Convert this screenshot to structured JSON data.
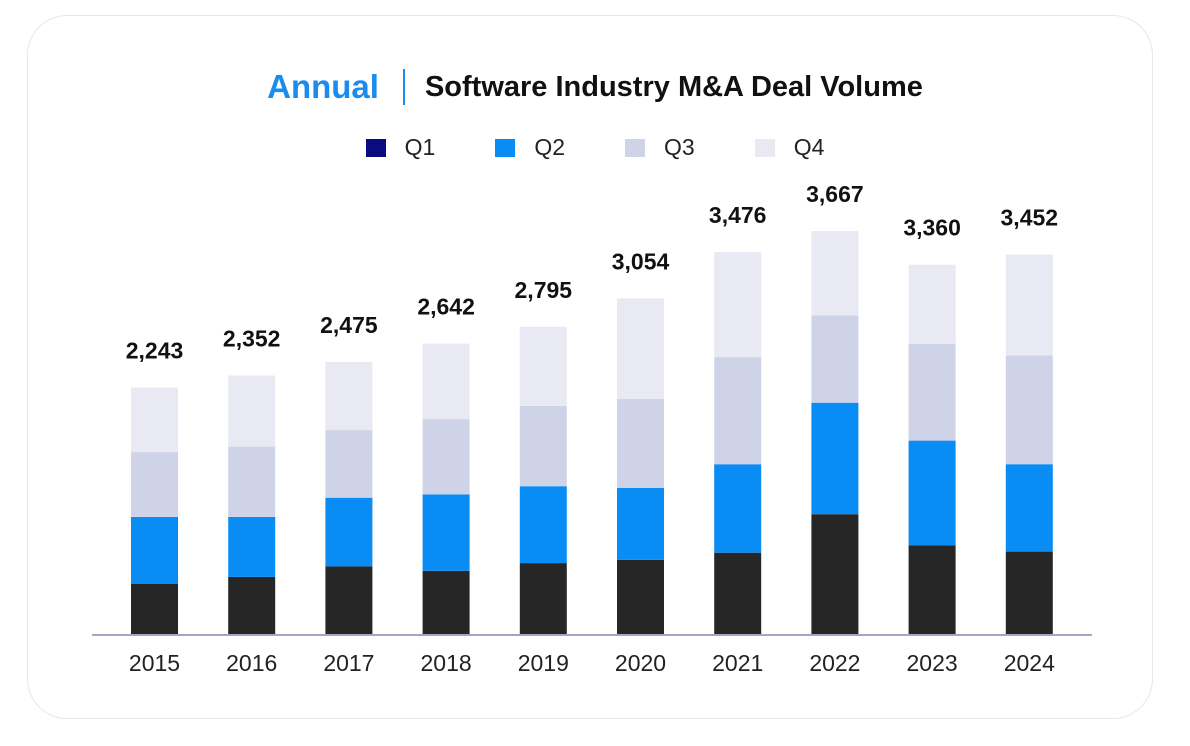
{
  "title": {
    "accent": "Annual",
    "main": "Software Industry M&A Deal Volume"
  },
  "colors": {
    "accent": "#1a8cf0",
    "q1": "#262626",
    "q2": "#0a8cf5",
    "q3": "#cfd3e7",
    "q4": "#e8e9f3",
    "baseline": "#a4a6c4"
  },
  "legend": [
    {
      "label": "Q1",
      "color": "#0b0b80"
    },
    {
      "label": "Q2",
      "color": "#0a8cf5"
    },
    {
      "label": "Q3",
      "color": "#cfd3e7"
    },
    {
      "label": "Q4",
      "color": "#e8e9f3"
    }
  ],
  "chart_data": {
    "type": "bar",
    "stacked": true,
    "categories": [
      "2015",
      "2016",
      "2017",
      "2018",
      "2019",
      "2020",
      "2021",
      "2022",
      "2023",
      "2024"
    ],
    "series": [
      {
        "name": "Q1",
        "values": [
          455,
          520,
          615,
          575,
          645,
          675,
          740,
          1090,
          805,
          750
        ]
      },
      {
        "name": "Q2",
        "values": [
          610,
          545,
          625,
          695,
          700,
          655,
          805,
          1015,
          955,
          795
        ]
      },
      {
        "name": "Q3",
        "values": [
          590,
          640,
          615,
          685,
          730,
          810,
          975,
          795,
          880,
          990
        ]
      },
      {
        "name": "Q4",
        "values": [
          588,
          647,
          620,
          687,
          720,
          914,
          956,
          767,
          720,
          917
        ]
      }
    ],
    "totals": [
      "2,243",
      "2,352",
      "2,475",
      "2,642",
      "2,795",
      "3,054",
      "3,476",
      "3,667",
      "3,360",
      "3,452"
    ],
    "total_values": [
      2243,
      2352,
      2475,
      2642,
      2795,
      3054,
      3476,
      3667,
      3360,
      3452
    ],
    "ylim": [
      0,
      3667
    ],
    "grid": false,
    "legend_position": "top"
  }
}
